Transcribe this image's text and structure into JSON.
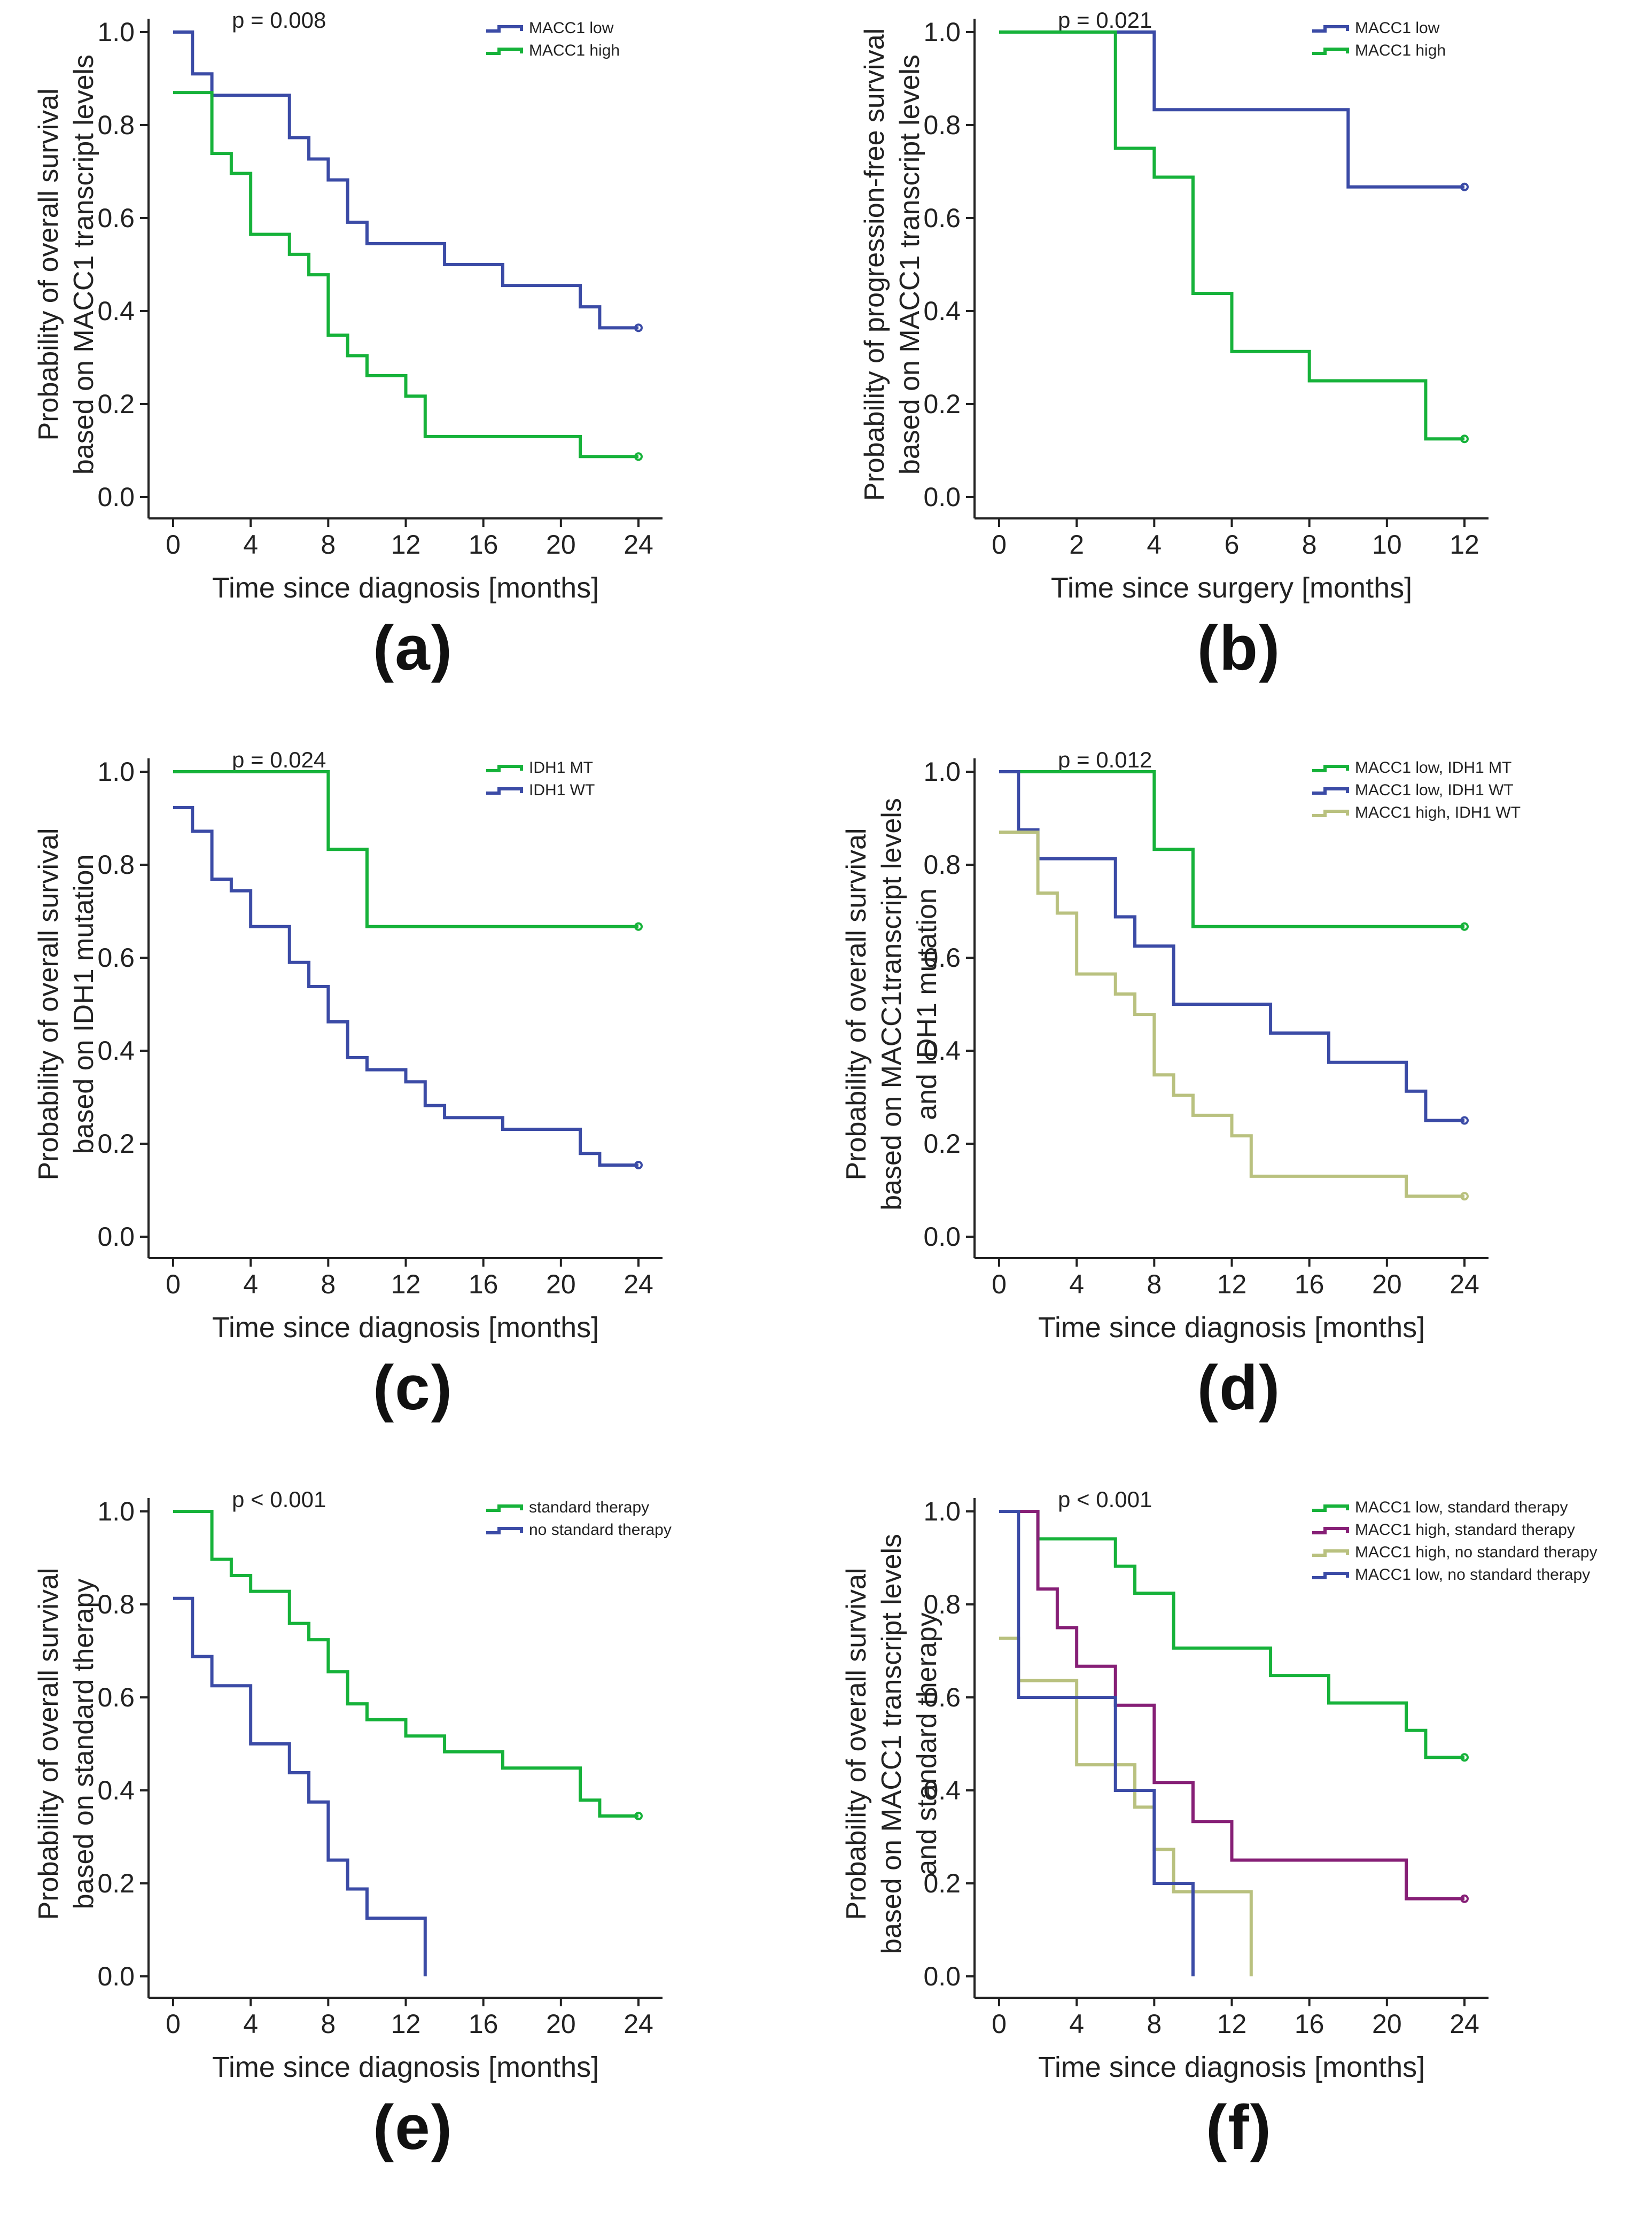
{
  "colors": {
    "blue": "#3b4ba6",
    "green": "#16b23a",
    "khaki": "#b9c17f",
    "purple": "#861f76",
    "axis": "#222222"
  },
  "chart_data": [
    {
      "panel": "a",
      "label": "(a)",
      "type": "line",
      "step": true,
      "p_value": "p = 0.008",
      "xlabel": "Time since diagnosis [months]",
      "ylabel": [
        "Probability of overall survival",
        "based on MACC1 transcript levels"
      ],
      "xlim": [
        0,
        24
      ],
      "ylim": [
        0,
        1
      ],
      "xticks": [
        0,
        4,
        8,
        12,
        16,
        20,
        24
      ],
      "yticks": [
        0,
        0.2,
        0.4,
        0.6,
        0.8,
        1.0
      ],
      "legend_position": "top-right",
      "series": [
        {
          "name": "MACC1 low",
          "color": "#3b4ba6",
          "x": [
            0,
            1,
            2,
            6,
            7,
            8,
            9,
            10,
            14,
            17,
            21,
            22,
            24
          ],
          "y": [
            1.0,
            0.91,
            0.864,
            0.773,
            0.727,
            0.682,
            0.591,
            0.545,
            0.5,
            0.455,
            0.409,
            0.364,
            0.364
          ]
        },
        {
          "name": "MACC1 high",
          "color": "#16b23a",
          "x": [
            0,
            2,
            3,
            4,
            6,
            7,
            8,
            9,
            10,
            12,
            13,
            21,
            24
          ],
          "y": [
            0.87,
            0.739,
            0.696,
            0.565,
            0.522,
            0.478,
            0.348,
            0.304,
            0.261,
            0.217,
            0.13,
            0.087,
            0.087
          ]
        }
      ]
    },
    {
      "panel": "b",
      "label": "(b)",
      "type": "line",
      "step": true,
      "p_value": "p = 0.021",
      "xlabel": "Time since surgery [months]",
      "ylabel": [
        "Probability of progression-free survival",
        "based on MACC1 transcript levels"
      ],
      "xlim": [
        0,
        12
      ],
      "ylim": [
        0,
        1
      ],
      "xticks": [
        0,
        2,
        4,
        6,
        8,
        10,
        12
      ],
      "yticks": [
        0,
        0.2,
        0.4,
        0.6,
        0.8,
        1.0
      ],
      "legend_position": "top-right",
      "series": [
        {
          "name": "MACC1 low",
          "color": "#3b4ba6",
          "x": [
            0,
            4,
            9,
            12
          ],
          "y": [
            1.0,
            0.833,
            0.667,
            0.667
          ]
        },
        {
          "name": "MACC1 high",
          "color": "#16b23a",
          "x": [
            0,
            3,
            4,
            5,
            6,
            8,
            11,
            12
          ],
          "y": [
            1.0,
            0.75,
            0.688,
            0.438,
            0.313,
            0.25,
            0.125,
            0.125
          ]
        }
      ]
    },
    {
      "panel": "c",
      "label": "(c)",
      "type": "line",
      "step": true,
      "p_value": "p = 0.024",
      "xlabel": "Time since diagnosis [months]",
      "ylabel": [
        "Probability of overall survival",
        "based on IDH1 mutation"
      ],
      "xlim": [
        0,
        24
      ],
      "ylim": [
        0,
        1
      ],
      "xticks": [
        0,
        4,
        8,
        12,
        16,
        20,
        24
      ],
      "yticks": [
        0,
        0.2,
        0.4,
        0.6,
        0.8,
        1.0
      ],
      "legend_position": "top-right",
      "series": [
        {
          "name": "IDH1 MT",
          "color": "#16b23a",
          "x": [
            0,
            8,
            10,
            24
          ],
          "y": [
            1.0,
            0.833,
            0.667,
            0.667
          ]
        },
        {
          "name": "IDH1 WT",
          "color": "#3b4ba6",
          "x": [
            0,
            1,
            2,
            3,
            4,
            6,
            7,
            8,
            9,
            10,
            12,
            13,
            14,
            17,
            21,
            22,
            24
          ],
          "y": [
            0.923,
            0.872,
            0.769,
            0.744,
            0.667,
            0.59,
            0.538,
            0.462,
            0.385,
            0.359,
            0.333,
            0.282,
            0.256,
            0.231,
            0.179,
            0.154,
            0.154
          ]
        }
      ]
    },
    {
      "panel": "d",
      "label": "(d)",
      "type": "line",
      "step": true,
      "p_value": "p = 0.012",
      "xlabel": "Time since diagnosis [months]",
      "ylabel": [
        "Probability of overall survival",
        "based on MACC1transcript levels",
        "and IDH1 mutation"
      ],
      "xlim": [
        0,
        24
      ],
      "ylim": [
        0,
        1
      ],
      "xticks": [
        0,
        4,
        8,
        12,
        16,
        20,
        24
      ],
      "yticks": [
        0,
        0.2,
        0.4,
        0.6,
        0.8,
        1.0
      ],
      "legend_position": "top-right",
      "series": [
        {
          "name": "MACC1 low, IDH1 MT",
          "color": "#16b23a",
          "x": [
            0,
            8,
            10,
            24
          ],
          "y": [
            1.0,
            0.833,
            0.667,
            0.667
          ]
        },
        {
          "name": "MACC1 low, IDH1 WT",
          "color": "#3b4ba6",
          "x": [
            0,
            1,
            2,
            6,
            7,
            9,
            14,
            17,
            21,
            22,
            24
          ],
          "y": [
            1.0,
            0.875,
            0.813,
            0.688,
            0.625,
            0.5,
            0.438,
            0.375,
            0.313,
            0.25,
            0.25
          ]
        },
        {
          "name": "MACC1 high, IDH1 WT",
          "color": "#b9c17f",
          "x": [
            0,
            1,
            2,
            3,
            4,
            6,
            7,
            8,
            9,
            10,
            12,
            13,
            21,
            24
          ],
          "y": [
            0.87,
            0.87,
            0.739,
            0.696,
            0.565,
            0.522,
            0.478,
            0.348,
            0.304,
            0.261,
            0.217,
            0.13,
            0.087,
            0.087
          ]
        }
      ]
    },
    {
      "panel": "e",
      "label": "(e)",
      "type": "line",
      "step": true,
      "p_value": "p < 0.001",
      "xlabel": "Time since diagnosis [months]",
      "ylabel": [
        "Probability of overall survival",
        "based on standard therapy"
      ],
      "xlim": [
        0,
        24
      ],
      "ylim": [
        0,
        1
      ],
      "xticks": [
        0,
        4,
        8,
        12,
        16,
        20,
        24
      ],
      "yticks": [
        0,
        0.2,
        0.4,
        0.6,
        0.8,
        1.0
      ],
      "legend_position": "top-right",
      "series": [
        {
          "name": "standard therapy",
          "color": "#16b23a",
          "x": [
            0,
            2,
            3,
            4,
            6,
            7,
            8,
            9,
            10,
            12,
            14,
            17,
            21,
            22,
            24
          ],
          "y": [
            1.0,
            0.897,
            0.862,
            0.828,
            0.759,
            0.724,
            0.655,
            0.586,
            0.552,
            0.517,
            0.483,
            0.448,
            0.379,
            0.345,
            0.345
          ]
        },
        {
          "name": "no standard therapy",
          "color": "#3b4ba6",
          "x": [
            0,
            1,
            2,
            4,
            6,
            7,
            8,
            9,
            10,
            13,
            13
          ],
          "y": [
            0.813,
            0.688,
            0.625,
            0.5,
            0.438,
            0.375,
            0.25,
            0.188,
            0.125,
            0.125,
            0.0
          ]
        }
      ]
    },
    {
      "panel": "f",
      "label": "(f)",
      "type": "line",
      "step": true,
      "p_value": "p < 0.001",
      "xlabel": "Time since diagnosis [months]",
      "ylabel": [
        "Probability of overall survival",
        "based on MACC1 transcript levels",
        "and standard therapy"
      ],
      "xlim": [
        0,
        24
      ],
      "ylim": [
        0,
        1
      ],
      "xticks": [
        0,
        4,
        8,
        12,
        16,
        20,
        24
      ],
      "yticks": [
        0,
        0.2,
        0.4,
        0.6,
        0.8,
        1.0
      ],
      "legend_position": "top-right",
      "series": [
        {
          "name": "MACC1 low, standard therapy",
          "color": "#16b23a",
          "x": [
            0,
            2,
            6,
            7,
            9,
            14,
            17,
            21,
            22,
            24
          ],
          "y": [
            1.0,
            0.941,
            0.882,
            0.824,
            0.706,
            0.647,
            0.588,
            0.529,
            0.471,
            0.471
          ]
        },
        {
          "name": "MACC1 high, standard therapy",
          "color": "#861f76",
          "x": [
            0,
            2,
            3,
            4,
            6,
            8,
            10,
            12,
            21,
            24
          ],
          "y": [
            1.0,
            0.833,
            0.75,
            0.667,
            0.583,
            0.417,
            0.333,
            0.25,
            0.167,
            0.167
          ]
        },
        {
          "name": "MACC1 high, no standard therapy",
          "color": "#b9c17f",
          "x": [
            0,
            1,
            4,
            7,
            8,
            9,
            13,
            13
          ],
          "y": [
            0.727,
            0.636,
            0.455,
            0.364,
            0.273,
            0.182,
            0.182,
            0.0
          ]
        },
        {
          "name": "MACC1 low, no standard therapy",
          "color": "#3b4ba6",
          "x": [
            0,
            1,
            6,
            8,
            10,
            10
          ],
          "y": [
            1.0,
            0.6,
            0.4,
            0.2,
            0.2,
            0.0
          ]
        }
      ]
    }
  ]
}
